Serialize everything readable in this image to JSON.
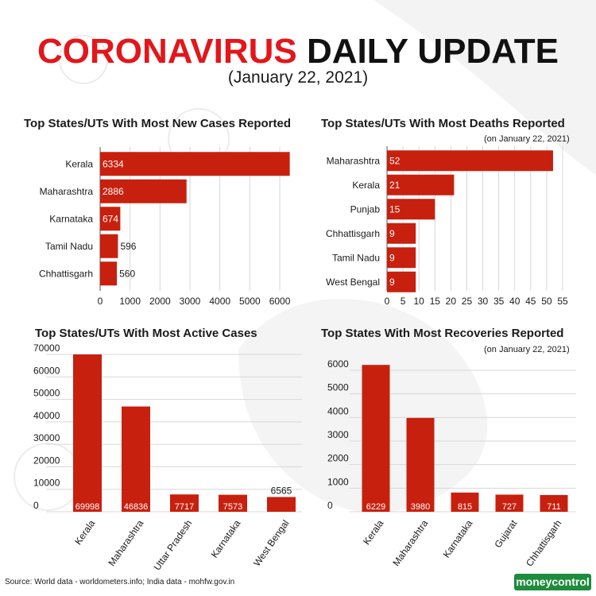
{
  "header": {
    "title_red": "CORONAVIRUS",
    "title_black": "DAILY UPDATE",
    "subtitle": "(January 22, 2021)"
  },
  "footer": {
    "source": "Source: World data - worldometers.info; India data - mohfw.gov.in",
    "logo": "moneycontrol"
  },
  "colors": {
    "bar": "#c8200e",
    "title_red": "#e3161b",
    "grid": "#d7d7d7",
    "logo_green": "#1e8c3c"
  },
  "chart_data": [
    {
      "type": "bar",
      "orientation": "horizontal",
      "title": "Top States/UTs With Most New Cases Reported",
      "note": "",
      "categories": [
        "Kerala",
        "Maharashtra",
        "Karnataka",
        "Tamil Nadu",
        "Chhattisgarh"
      ],
      "values": [
        6334,
        2886,
        674,
        596,
        560
      ],
      "axis_ticks": [
        "0",
        "1000",
        "2000",
        "3000",
        "4000",
        "5000",
        "6000"
      ],
      "xlim": [
        0,
        6450
      ],
      "grid": true
    },
    {
      "type": "bar",
      "orientation": "horizontal",
      "title": "Top States/UTs With Most Deaths Reported",
      "note": "(on January 22, 2021)",
      "categories": [
        "Maharashtra",
        "Kerala",
        "Punjab",
        "Chhattisgarh",
        "Tamil Nadu",
        "West Bengal"
      ],
      "values": [
        52,
        21,
        15,
        9,
        9,
        9
      ],
      "axis_ticks": [
        "0",
        "5",
        "10",
        "15",
        "20",
        "25",
        "30",
        "35",
        "40",
        "45",
        "50",
        "55"
      ],
      "xlim": [
        0,
        55
      ],
      "grid": true
    },
    {
      "type": "bar",
      "orientation": "vertical",
      "title": "Top States/UTs With Most Active Cases",
      "note": "",
      "categories": [
        "Kerala",
        "Maharashtra",
        "Uttar Pradesh",
        "Karnataka",
        "West Bengal"
      ],
      "values": [
        69998,
        46836,
        7717,
        7573,
        6565
      ],
      "axis_ticks": [
        "0",
        "10000",
        "20000",
        "30000",
        "40000",
        "50000",
        "60000",
        "70000"
      ],
      "ylim": [
        0,
        70000
      ],
      "grid": true
    },
    {
      "type": "bar",
      "orientation": "vertical",
      "title": "Top States With Most Recoveries Reported",
      "note": "(on January 22, 2021)",
      "categories": [
        "Kerala",
        "Maharashtra",
        "Karnataka",
        "Gujarat",
        "Chhattisgarh"
      ],
      "values": [
        6229,
        3980,
        815,
        727,
        711
      ],
      "axis_ticks": [
        "0",
        "1000",
        "2000",
        "3000",
        "4000",
        "5000",
        "6000"
      ],
      "ylim": [
        0,
        6000
      ],
      "grid": true
    }
  ]
}
